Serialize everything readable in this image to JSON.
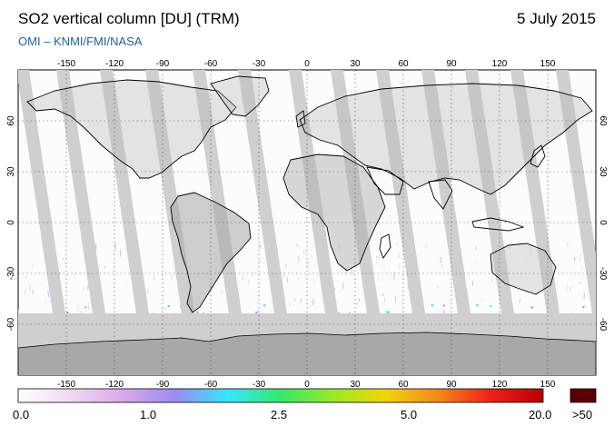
{
  "header": {
    "title": "SO2 vertical column [DU] (TRM)",
    "date": "5 July 2015",
    "credit": "OMI  –  KNMI/FMI/NASA"
  },
  "map": {
    "projection": "equirectangular",
    "lon_ticks": [
      "-150",
      "-120",
      "-90",
      "-60",
      "-30",
      "0",
      "30",
      "60",
      "90",
      "120",
      "150"
    ],
    "lat_ticks": [
      "60",
      "30",
      "0",
      "-30",
      "-60"
    ],
    "no_data_color": "#cfcfcf",
    "land_dark_color": "#a8a8a8",
    "coastline_color": "#000000"
  },
  "colorbar": {
    "labels": [
      "0.0",
      "1.0",
      "2.5",
      "5.0",
      "20.0"
    ],
    "overflow_label": ">50",
    "overflow_color": "#5a0000",
    "gradient": [
      "#ffffff",
      "#f2d8f2",
      "#d9a8e8",
      "#9a8cf0",
      "#37e6ff",
      "#35e86a",
      "#9ae826",
      "#f2d40e",
      "#f2891a",
      "#f0201a",
      "#b80000"
    ]
  }
}
